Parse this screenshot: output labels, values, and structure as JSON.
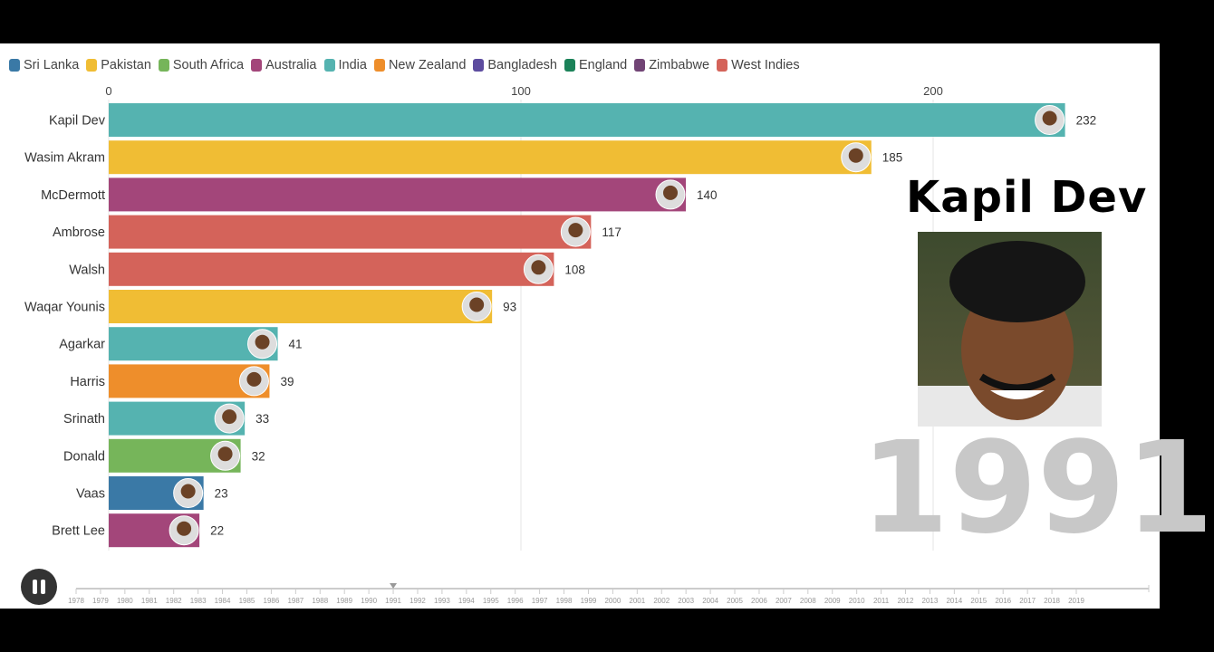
{
  "chart_data": {
    "type": "bar",
    "title": "",
    "legend": [
      {
        "name": "Sri Lanka",
        "color": "#3a79a6"
      },
      {
        "name": "Pakistan",
        "color": "#f0bd34"
      },
      {
        "name": "South Africa",
        "color": "#76b55a"
      },
      {
        "name": "Australia",
        "color": "#a3467a"
      },
      {
        "name": "India",
        "color": "#55b3b0"
      },
      {
        "name": "New Zealand",
        "color": "#ee8e2b"
      },
      {
        "name": "Bangladesh",
        "color": "#5d4c9f"
      },
      {
        "name": "England",
        "color": "#1b8259"
      },
      {
        "name": "Zimbabwe",
        "color": "#714475"
      },
      {
        "name": "West Indies",
        "color": "#d4635a"
      }
    ],
    "legend_position": "top-left",
    "categories": [
      "Kapil Dev",
      "Wasim Akram",
      "McDermott",
      "Ambrose",
      "Walsh",
      "Waqar Younis",
      "Agarkar",
      "Harris",
      "Srinath",
      "Donald",
      "Vaas",
      "Brett Lee"
    ],
    "teams": [
      "India",
      "Pakistan",
      "Australia",
      "West Indies",
      "West Indies",
      "Pakistan",
      "India",
      "New Zealand",
      "India",
      "South Africa",
      "Sri Lanka",
      "Australia"
    ],
    "values": [
      232,
      185,
      140,
      117,
      108,
      93,
      41,
      39,
      33,
      32,
      23,
      22
    ],
    "xlim": [
      0,
      250
    ],
    "xticks": [
      0,
      100,
      200
    ],
    "grid": true,
    "leader": "Kapil Dev",
    "year": "1991",
    "timeline": {
      "years": [
        "1978",
        "1979",
        "1980",
        "1981",
        "1982",
        "1983",
        "1984",
        "1985",
        "1986",
        "1987",
        "1988",
        "1989",
        "1990",
        "1991",
        "1992",
        "1993",
        "1994",
        "1995",
        "1996",
        "1997",
        "1998",
        "1999",
        "2000",
        "2001",
        "2002",
        "2003",
        "2004",
        "2005",
        "2006",
        "2007",
        "2008",
        "2009",
        "2010",
        "2011",
        "2012",
        "2013",
        "2014",
        "2015",
        "2016",
        "2017",
        "2018",
        "2019"
      ],
      "current": "1991"
    }
  }
}
